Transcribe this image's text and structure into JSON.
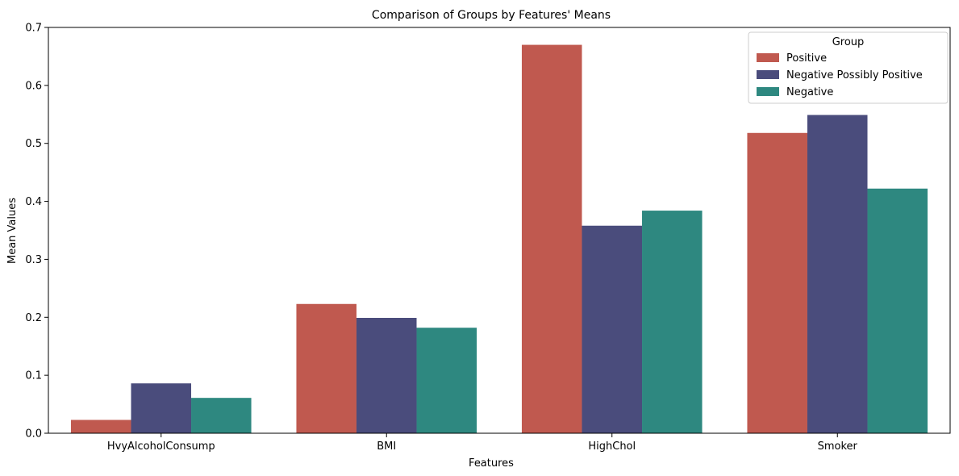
{
  "chart_data": {
    "type": "bar",
    "title": "Comparison of Groups by Features' Means",
    "xlabel": "Features",
    "ylabel": "Mean Values",
    "categories": [
      "HvyAlcoholConsump",
      "BMI",
      "HighChol",
      "Smoker"
    ],
    "series": [
      {
        "name": "Positive",
        "color": "#c0594f",
        "values": [
          0.023,
          0.223,
          0.67,
          0.518
        ]
      },
      {
        "name": "Negative Possibly Positive",
        "color": "#4a4c7c",
        "values": [
          0.086,
          0.199,
          0.358,
          0.549
        ]
      },
      {
        "name": "Negative",
        "color": "#2e8880",
        "values": [
          0.061,
          0.182,
          0.384,
          0.422
        ]
      }
    ],
    "ylim": [
      0,
      0.7
    ],
    "yticks": [
      "0.0",
      "0.1",
      "0.2",
      "0.3",
      "0.4",
      "0.5",
      "0.6",
      "0.7"
    ],
    "grid": false,
    "legend": {
      "title": "Group",
      "placement": "top-right"
    }
  }
}
